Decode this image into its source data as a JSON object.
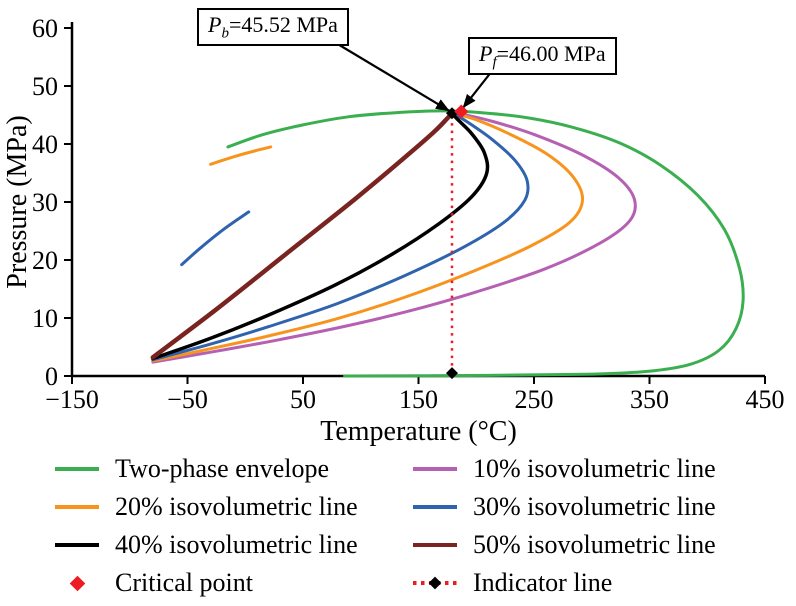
{
  "chart_data": {
    "type": "line",
    "title": "",
    "xlabel": "Temperature (°C)",
    "ylabel": "Pressure (MPa)",
    "xlim": [
      -150,
      450
    ],
    "ylim": [
      0,
      60
    ],
    "grid": false,
    "legend_position": "bottom",
    "xticks": {
      "values": [
        -150,
        -50,
        50,
        150,
        250,
        350,
        450
      ],
      "labels": [
        "−150",
        "−50",
        "50",
        "150",
        "250",
        "350",
        "450"
      ]
    },
    "yticks": {
      "values": [
        0,
        10,
        20,
        30,
        40,
        50,
        60
      ],
      "labels": [
        "0",
        "10",
        "20",
        "30",
        "40",
        "50",
        "60"
      ]
    },
    "series": [
      {
        "name": "Two-phase envelope",
        "color": "#3BAF4F",
        "width": 3,
        "points": [
          [
            -15,
            39.5
          ],
          [
            15,
            41.6
          ],
          [
            50,
            43.3
          ],
          [
            90,
            44.7
          ],
          [
            130,
            45.4
          ],
          [
            170,
            45.7
          ],
          [
            205,
            45.4
          ],
          [
            245,
            44.5
          ],
          [
            285,
            42.8
          ],
          [
            325,
            40.1
          ],
          [
            360,
            36.3
          ],
          [
            392,
            31.1
          ],
          [
            415,
            25.2
          ],
          [
            428,
            18.5
          ],
          [
            431,
            13
          ],
          [
            425,
            8.2
          ],
          [
            410,
            4.4
          ],
          [
            385,
            2
          ],
          [
            348,
            0.8
          ],
          [
            295,
            0.3
          ],
          [
            210,
            0.1
          ],
          [
            86,
            0
          ]
        ]
      },
      {
        "name": "10% isovolumetric line",
        "color": "#B560B2",
        "width": 3,
        "points": [
          [
            -80,
            2.4
          ],
          [
            -30,
            4.1
          ],
          [
            20,
            5.9
          ],
          [
            80,
            8.3
          ],
          [
            140,
            11.1
          ],
          [
            200,
            14.5
          ],
          [
            260,
            18.5
          ],
          [
            308,
            23
          ],
          [
            333,
            26.8
          ],
          [
            337,
            30.4
          ],
          [
            323,
            34.2
          ],
          [
            292,
            38.1
          ],
          [
            252,
            41.5
          ],
          [
            216,
            43.8
          ],
          [
            191,
            45
          ],
          [
            179,
            45.4
          ]
        ]
      },
      {
        "name": "20% isovolumetric line",
        "color": "#F7941E",
        "width": 3,
        "points": [
          [
            -80,
            2.6
          ],
          [
            -30,
            4.7
          ],
          [
            20,
            6.9
          ],
          [
            80,
            9.9
          ],
          [
            140,
            13.7
          ],
          [
            198,
            18.1
          ],
          [
            248,
            22.5
          ],
          [
            281,
            26.5
          ],
          [
            292,
            30.3
          ],
          [
            284,
            34.3
          ],
          [
            261,
            38.3
          ],
          [
            229,
            41.7
          ],
          [
            201,
            44.1
          ],
          [
            180,
            45.3
          ]
        ]
      },
      {
        "name": "30% isovolumetric line",
        "color": "#2F63AE",
        "width": 3,
        "points": [
          [
            -80,
            2.8
          ],
          [
            -30,
            5.5
          ],
          [
            20,
            8.5
          ],
          [
            80,
            12.5
          ],
          [
            138,
            17.3
          ],
          [
            188,
            22.1
          ],
          [
            224,
            26.5
          ],
          [
            242,
            30.3
          ],
          [
            244,
            33.7
          ],
          [
            233,
            37.3
          ],
          [
            213,
            40.9
          ],
          [
            193,
            43.7
          ],
          [
            180,
            45.3
          ]
        ]
      },
      {
        "name": "40% isovolumetric line",
        "color": "#000000",
        "width": 3.5,
        "points": [
          [
            -80,
            3
          ],
          [
            -30,
            6.5
          ],
          [
            20,
            10.5
          ],
          [
            78,
            15.7
          ],
          [
            128,
            21.1
          ],
          [
            168,
            26.3
          ],
          [
            196,
            30.9
          ],
          [
            209,
            34.9
          ],
          [
            207,
            38.5
          ],
          [
            196,
            41.8
          ],
          [
            184,
            44.2
          ],
          [
            179,
            45.3
          ]
        ]
      },
      {
        "name": "50% isovolumetric line",
        "color": "#7A2422",
        "width": 4.5,
        "points": [
          [
            -80,
            3.2
          ],
          [
            -25,
            11.5
          ],
          [
            35,
            21
          ],
          [
            95,
            30.5
          ],
          [
            140,
            38
          ],
          [
            163,
            42
          ],
          [
            174,
            44.2
          ],
          [
            179,
            45.3
          ]
        ]
      },
      {
        "name": "20% isovolumetric line upper branch",
        "color": "#F7941E",
        "width": 3,
        "points": [
          [
            -30,
            36.5
          ],
          [
            -10,
            37.8
          ],
          [
            8,
            38.8
          ],
          [
            22,
            39.5
          ]
        ]
      },
      {
        "name": "30% isovolumetric line upper branch",
        "color": "#2F63AE",
        "width": 3,
        "points": [
          [
            -55,
            19.2
          ],
          [
            -38,
            22.2
          ],
          [
            -18,
            25.4
          ],
          [
            3,
            28.3
          ]
        ]
      }
    ],
    "critical_point": {
      "T": 187,
      "P": 45.6,
      "color": "#EC1C24"
    },
    "indicator_line": {
      "T": 179,
      "P_bottom": 0.5,
      "P_top": 45.3,
      "color": "#EC1C24",
      "marker_color": "#000000"
    },
    "annotations": [
      {
        "p": "P",
        "sub": "b",
        "rest": "=45.52 MPa",
        "target_T": 179,
        "target_P": 45.4
      },
      {
        "p": "P",
        "sub": "f",
        "rest": "=46.00 MPa",
        "target_T": 187,
        "target_P": 45.6
      }
    ]
  },
  "legend": {
    "items": [
      {
        "label": "Two-phase envelope",
        "marker": "line",
        "color": "#3BAF4F"
      },
      {
        "label": "10% isovolumetric line",
        "marker": "line",
        "color": "#B560B2"
      },
      {
        "label": "20% isovolumetric line",
        "marker": "line",
        "color": "#F7941E"
      },
      {
        "label": "30% isovolumetric line",
        "marker": "line",
        "color": "#2F63AE"
      },
      {
        "label": "40% isovolumetric line",
        "marker": "line",
        "color": "#000000"
      },
      {
        "label": "50% isovolumetric line",
        "marker": "line",
        "color": "#7A2422"
      },
      {
        "label": "Critical point",
        "marker": "diamond",
        "color": "#EC1C24"
      },
      {
        "label": "Indicator line",
        "marker": "dotted-diamond",
        "color": "#EC1C24",
        "marker2_color": "#000000"
      }
    ]
  }
}
